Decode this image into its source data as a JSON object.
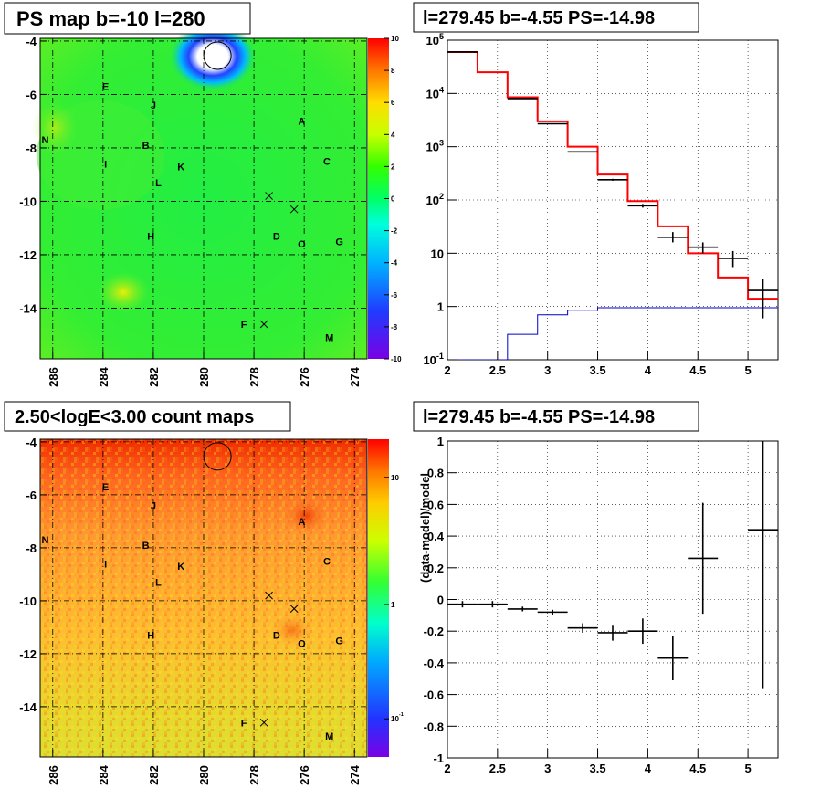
{
  "panels": {
    "ps_map": {
      "title": "PS map b=-10 l=280"
    },
    "spectrum": {
      "title": "l=279.45 b=-4.55 PS=-14.98"
    },
    "count_map": {
      "title": "2.50<logE<3.00 count maps"
    },
    "residual": {
      "title": "l=279.45 b=-4.55 PS=-14.98",
      "ylabel": "(data-model)/model"
    }
  },
  "sources": [
    "E",
    "J",
    "A",
    "N",
    "B",
    "C",
    "I",
    "K",
    "L",
    "H",
    "D",
    "O",
    "G",
    "F",
    "M"
  ],
  "maps": {
    "x_ticks": [
      "286",
      "284",
      "282",
      "280",
      "278",
      "276",
      "274"
    ],
    "y_ticks": [
      "-4",
      "-6",
      "-8",
      "-10",
      "-12",
      "-14"
    ],
    "ps_colorbar_ticks": [
      "10",
      "8",
      "6",
      "4",
      "2",
      "0",
      "-2",
      "-4",
      "-6",
      "-8",
      "-10"
    ],
    "count_colorbar_ticks": [
      "10",
      "1",
      "10^-1"
    ]
  },
  "chart_data": [
    {
      "type": "heatmap",
      "title": "PS map b=-10 l=280",
      "xlim": [
        286.5,
        273.5
      ],
      "ylim": [
        -15.9,
        -3.9
      ],
      "zlim": [
        -10,
        10
      ],
      "colors": {
        "background": "#22ee44",
        "hotspot": "#ffffff"
      },
      "markers": [
        {
          "name": "E",
          "l": 283.9,
          "b": -5.7
        },
        {
          "name": "J",
          "l": 282.0,
          "b": -6.4
        },
        {
          "name": "A",
          "l": 276.1,
          "b": -7.0
        },
        {
          "name": "N",
          "l": 286.3,
          "b": -7.7
        },
        {
          "name": "B",
          "l": 282.3,
          "b": -7.9
        },
        {
          "name": "C",
          "l": 275.1,
          "b": -8.5
        },
        {
          "name": "I",
          "l": 283.9,
          "b": -8.6
        },
        {
          "name": "K",
          "l": 280.9,
          "b": -8.7
        },
        {
          "name": "L",
          "l": 281.8,
          "b": -9.3
        },
        {
          "name": "H",
          "l": 282.1,
          "b": -11.3
        },
        {
          "name": "D",
          "l": 277.1,
          "b": -11.3
        },
        {
          "name": "O",
          "l": 276.1,
          "b": -11.6
        },
        {
          "name": "G",
          "l": 274.6,
          "b": -11.5
        },
        {
          "name": "F",
          "l": 278.4,
          "b": -14.6
        },
        {
          "name": "M",
          "l": 275.0,
          "b": -15.1
        }
      ],
      "crosses": [
        {
          "l": 277.4,
          "b": -9.8
        },
        {
          "l": 276.4,
          "b": -10.3
        },
        {
          "l": 277.6,
          "b": -14.6
        }
      ],
      "circle": {
        "l": 279.45,
        "b": -4.55
      }
    },
    {
      "type": "line",
      "title": "l=279.45 b=-4.55 PS=-14.98",
      "xlim": [
        2.0,
        5.3
      ],
      "ylim": [
        0.1,
        100000
      ],
      "yscale": "log",
      "x_ticks": [
        "2",
        "2.5",
        "3",
        "3.5",
        "4",
        "4.5",
        "5"
      ],
      "y_ticks": [
        "10^-1",
        "1",
        "10",
        "10^2",
        "10^3",
        "10^4",
        "10^5"
      ],
      "grid": true,
      "data_points": [
        {
          "x": 2.15,
          "xerr": 0.15,
          "y": 60000,
          "ylo": 60000,
          "yhi": 60000
        },
        {
          "x": 2.75,
          "xerr": 0.15,
          "y": 8000,
          "ylo": 8000,
          "yhi": 8000
        },
        {
          "x": 3.05,
          "xerr": 0.15,
          "y": 2700,
          "ylo": 2700,
          "yhi": 2700
        },
        {
          "x": 3.35,
          "xerr": 0.15,
          "y": 800,
          "ylo": 800,
          "yhi": 800
        },
        {
          "x": 3.65,
          "xerr": 0.15,
          "y": 240,
          "ylo": 230,
          "yhi": 250
        },
        {
          "x": 3.95,
          "xerr": 0.15,
          "y": 78,
          "ylo": 72,
          "yhi": 84
        },
        {
          "x": 4.25,
          "xerr": 0.15,
          "y": 20,
          "ylo": 16,
          "yhi": 25
        },
        {
          "x": 4.55,
          "xerr": 0.15,
          "y": 13,
          "ylo": 10,
          "yhi": 16
        },
        {
          "x": 4.85,
          "xerr": 0.15,
          "y": 8,
          "ylo": 5.5,
          "yhi": 11
        },
        {
          "x": 5.15,
          "xerr": 0.15,
          "y": 2,
          "ylo": 0.6,
          "yhi": 3.3
        }
      ],
      "series": [
        {
          "color": "#ff0000",
          "style": "step",
          "edges": [
            2.0,
            2.3,
            2.6,
            2.9,
            3.2,
            3.5,
            3.8,
            4.1,
            4.4,
            4.7,
            5.0,
            5.3
          ],
          "values": [
            60000,
            25000,
            8500,
            3000,
            1000,
            300,
            95,
            32,
            10,
            3.5,
            1.4
          ]
        },
        {
          "color": "#0000cc",
          "style": "step",
          "edges": [
            2.0,
            2.3,
            2.6,
            2.9,
            3.2,
            3.5,
            3.8,
            4.1,
            4.4,
            4.7,
            5.0,
            5.3
          ],
          "values": [
            0.1,
            0.1,
            0.3,
            0.7,
            0.85,
            0.95,
            0.95,
            0.95,
            0.95,
            0.95,
            0.95
          ]
        }
      ]
    },
    {
      "type": "heatmap",
      "title": "2.50<logE<3.00 count maps",
      "xlim": [
        286.5,
        273.5
      ],
      "ylim": [
        -15.9,
        -3.9
      ],
      "zscale": "log",
      "colors": {
        "top": "#ee2200",
        "middle": "#ff9933",
        "bottom": "#dddd33"
      }
    },
    {
      "type": "scatter",
      "title": "l=279.45 b=-4.55 PS=-14.98",
      "ylabel": "(data-model)/model",
      "xlim": [
        2.0,
        5.3
      ],
      "ylim": [
        -1,
        1
      ],
      "x_ticks": [
        "2",
        "2.5",
        "3",
        "3.5",
        "4",
        "4.5",
        "5"
      ],
      "y_ticks": [
        "1",
        "0.8",
        "0.6",
        "0.4",
        "0.2",
        "0",
        "-0.2",
        "-0.4",
        "-0.6",
        "-0.8",
        "-1"
      ],
      "grid": true,
      "points": [
        {
          "x": 2.15,
          "xerr": 0.15,
          "y": -0.03,
          "yerr": 0.02
        },
        {
          "x": 2.45,
          "xerr": 0.15,
          "y": -0.03,
          "yerr": 0.02
        },
        {
          "x": 2.75,
          "xerr": 0.15,
          "y": -0.06,
          "yerr": 0.015
        },
        {
          "x": 3.05,
          "xerr": 0.15,
          "y": -0.08,
          "yerr": 0.015
        },
        {
          "x": 3.35,
          "xerr": 0.15,
          "y": -0.18,
          "yerr": 0.03
        },
        {
          "x": 3.65,
          "xerr": 0.15,
          "y": -0.21,
          "yerr": 0.05
        },
        {
          "x": 3.95,
          "xerr": 0.15,
          "y": -0.2,
          "yerr": 0.08
        },
        {
          "x": 4.25,
          "xerr": 0.15,
          "y": -0.37,
          "yerr": 0.14
        },
        {
          "x": 4.55,
          "xerr": 0.15,
          "y": 0.26,
          "yerr": 0.35
        },
        {
          "x": 5.15,
          "xerr": 0.15,
          "y": 0.44,
          "yerr": 1.0
        }
      ]
    }
  ]
}
